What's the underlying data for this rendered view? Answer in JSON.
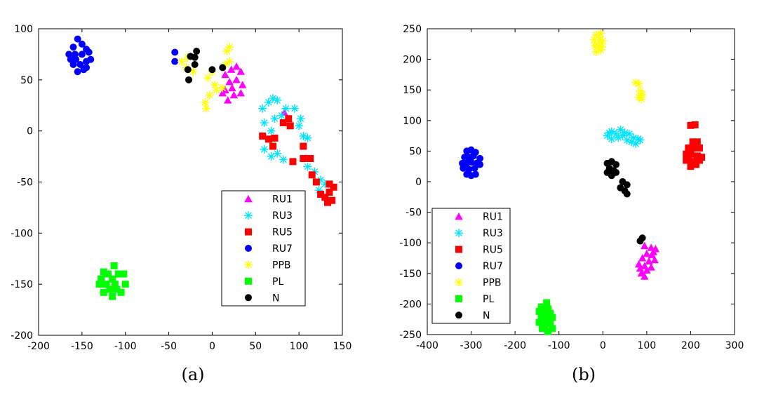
{
  "figure": {
    "caption_a": "(a)",
    "caption_b": "(b)"
  },
  "chart_data": [
    {
      "type": "scatter",
      "title": "",
      "xlabel": "",
      "ylabel": "",
      "xlim": [
        -200,
        150
      ],
      "ylim": [
        -200,
        100
      ],
      "xticks": [
        -200,
        -150,
        -100,
        -50,
        0,
        50,
        100,
        150
      ],
      "yticks": [
        -200,
        -150,
        -100,
        -50,
        0,
        50,
        100
      ],
      "legend_position": "lower-right",
      "series": [
        {
          "name": "RU1",
          "marker": "triangle",
          "color": "#ff00ff",
          "points": [
            [
              15,
              55
            ],
            [
              22,
              60
            ],
            [
              28,
              63
            ],
            [
              33,
              58
            ],
            [
              20,
              48
            ],
            [
              28,
              50
            ],
            [
              35,
              45
            ],
            [
              15,
              40
            ],
            [
              23,
              42
            ],
            [
              12,
              37
            ],
            [
              18,
              30
            ],
            [
              33,
              37
            ],
            [
              25,
              35
            ],
            [
              83,
              18
            ]
          ]
        },
        {
          "name": "RU3",
          "marker": "asterisk",
          "color": "#00e5ff",
          "points": [
            [
              58,
              22
            ],
            [
              65,
              28
            ],
            [
              70,
              32
            ],
            [
              75,
              30
            ],
            [
              60,
              8
            ],
            [
              68,
              0
            ],
            [
              72,
              12
            ],
            [
              80,
              15
            ],
            [
              85,
              22
            ],
            [
              95,
              22
            ],
            [
              102,
              12
            ],
            [
              100,
              5
            ],
            [
              105,
              -5
            ],
            [
              110,
              -7
            ],
            [
              60,
              -18
            ],
            [
              68,
              -25
            ],
            [
              75,
              -22
            ],
            [
              82,
              -28
            ],
            [
              110,
              -35
            ],
            [
              118,
              -40
            ],
            [
              125,
              -48
            ],
            [
              130,
              -52
            ],
            [
              123,
              -58
            ]
          ]
        },
        {
          "name": "RU5",
          "marker": "square",
          "color": "#ff0000",
          "points": [
            [
              82,
              8
            ],
            [
              88,
              12
            ],
            [
              90,
              5
            ],
            [
              58,
              -5
            ],
            [
              65,
              -8
            ],
            [
              72,
              -7
            ],
            [
              70,
              -15
            ],
            [
              105,
              -15
            ],
            [
              105,
              -27
            ],
            [
              113,
              -27
            ],
            [
              93,
              -30
            ],
            [
              115,
              -43
            ],
            [
              120,
              -50
            ],
            [
              125,
              -62
            ],
            [
              130,
              -65
            ],
            [
              135,
              -60
            ],
            [
              140,
              -55
            ],
            [
              135,
              -52
            ],
            [
              133,
              -70
            ],
            [
              138,
              -68
            ]
          ]
        },
        {
          "name": "RU7",
          "marker": "circle",
          "color": "#0000ff",
          "points": [
            [
              -160,
              82
            ],
            [
              -150,
              85
            ],
            [
              -155,
              90
            ],
            [
              -145,
              80
            ],
            [
              -165,
              75
            ],
            [
              -158,
              75
            ],
            [
              -150,
              75
            ],
            [
              -142,
              77
            ],
            [
              -160,
              65
            ],
            [
              -152,
              65
            ],
            [
              -145,
              68
            ],
            [
              -155,
              58
            ],
            [
              -148,
              60
            ],
            [
              -163,
              70
            ],
            [
              -140,
              70
            ],
            [
              -145,
              62
            ],
            [
              -157,
              70
            ],
            [
              -43,
              77
            ],
            [
              -43,
              68
            ]
          ]
        },
        {
          "name": "PPB",
          "marker": "asterisk",
          "color": "#ffff00",
          "points": [
            [
              -35,
              68
            ],
            [
              -28,
              72
            ],
            [
              -22,
              58
            ],
            [
              -30,
              62
            ],
            [
              -5,
              52
            ],
            [
              0,
              58
            ],
            [
              3,
              45
            ],
            [
              -3,
              35
            ],
            [
              -8,
              28
            ],
            [
              -7,
              22
            ],
            [
              17,
              78
            ],
            [
              20,
              82
            ],
            [
              15,
              65
            ],
            [
              20,
              68
            ],
            [
              5,
              40
            ],
            [
              12,
              42
            ]
          ]
        },
        {
          "name": "PL",
          "marker": "square",
          "color": "#00ff00",
          "points": [
            [
              -113,
              -132
            ],
            [
              -125,
              -138
            ],
            [
              -120,
              -140
            ],
            [
              -108,
              -140
            ],
            [
              -115,
              -145
            ],
            [
              -128,
              -145
            ],
            [
              -122,
              -150
            ],
            [
              -112,
              -150
            ],
            [
              -102,
              -140
            ],
            [
              -100,
              -150
            ],
            [
              -110,
              -155
            ],
            [
              -118,
              -155
            ],
            [
              -125,
              -158
            ],
            [
              -115,
              -162
            ],
            [
              -105,
              -158
            ],
            [
              -130,
              -150
            ]
          ]
        },
        {
          "name": "N",
          "marker": "circle",
          "color": "#000000",
          "points": [
            [
              -25,
              73
            ],
            [
              -18,
              78
            ],
            [
              -20,
              72
            ],
            [
              -28,
              60
            ],
            [
              -20,
              65
            ],
            [
              -27,
              50
            ],
            [
              0,
              60
            ],
            [
              12,
              62
            ]
          ]
        }
      ]
    },
    {
      "type": "scatter",
      "title": "",
      "xlabel": "",
      "ylabel": "",
      "xlim": [
        -400,
        300
      ],
      "ylim": [
        -250,
        250
      ],
      "xticks": [
        -400,
        -300,
        -200,
        -100,
        0,
        100,
        200,
        300
      ],
      "yticks": [
        -250,
        -200,
        -150,
        -100,
        -50,
        0,
        50,
        100,
        150,
        200,
        250
      ],
      "legend_position": "lower-left",
      "series": [
        {
          "name": "RU1",
          "marker": "triangle",
          "color": "#ff00ff",
          "points": [
            [
              95,
              -105
            ],
            [
              110,
              -108
            ],
            [
              120,
              -110
            ],
            [
              100,
              -118
            ],
            [
              112,
              -120
            ],
            [
              90,
              -125
            ],
            [
              105,
              -130
            ],
            [
              118,
              -128
            ],
            [
              95,
              -138
            ],
            [
              110,
              -140
            ],
            [
              85,
              -142
            ],
            [
              100,
              -145
            ],
            [
              88,
              -150
            ],
            [
              95,
              -155
            ],
            [
              115,
              -115
            ],
            [
              82,
              -135
            ]
          ]
        },
        {
          "name": "RU3",
          "marker": "asterisk",
          "color": "#00e5ff",
          "points": [
            [
              10,
              75
            ],
            [
              20,
              82
            ],
            [
              30,
              78
            ],
            [
              40,
              85
            ],
            [
              50,
              80
            ],
            [
              60,
              78
            ],
            [
              70,
              72
            ],
            [
              80,
              70
            ],
            [
              20,
              70
            ],
            [
              35,
              72
            ],
            [
              45,
              75
            ],
            [
              55,
              68
            ],
            [
              65,
              65
            ],
            [
              75,
              62
            ],
            [
              85,
              68
            ],
            [
              15,
              80
            ]
          ]
        },
        {
          "name": "RU5",
          "marker": "square",
          "color": "#ff0000",
          "points": [
            [
              200,
              92
            ],
            [
              210,
              93
            ],
            [
              205,
              65
            ],
            [
              215,
              65
            ],
            [
              195,
              55
            ],
            [
              210,
              55
            ],
            [
              220,
              55
            ],
            [
              190,
              45
            ],
            [
              200,
              45
            ],
            [
              215,
              42
            ],
            [
              225,
              40
            ],
            [
              195,
              35
            ],
            [
              208,
              33
            ],
            [
              220,
              35
            ],
            [
              200,
              25
            ],
            [
              212,
              28
            ],
            [
              190,
              35
            ]
          ]
        },
        {
          "name": "RU7",
          "marker": "circle",
          "color": "#0000ff",
          "points": [
            [
              -310,
              50
            ],
            [
              -300,
              52
            ],
            [
              -290,
              48
            ],
            [
              -315,
              40
            ],
            [
              -305,
              40
            ],
            [
              -295,
              42
            ],
            [
              -280,
              38
            ],
            [
              -320,
              30
            ],
            [
              -310,
              30
            ],
            [
              -300,
              32
            ],
            [
              -288,
              30
            ],
            [
              -318,
              22
            ],
            [
              -305,
              20
            ],
            [
              -292,
              22
            ],
            [
              -300,
              10
            ],
            [
              -310,
              12
            ],
            [
              -290,
              12
            ],
            [
              -280,
              28
            ]
          ]
        },
        {
          "name": "PPB",
          "marker": "asterisk",
          "color": "#ffff00",
          "points": [
            [
              -15,
              240
            ],
            [
              -5,
              242
            ],
            [
              -20,
              232
            ],
            [
              -8,
              232
            ],
            [
              0,
              230
            ],
            [
              -18,
              222
            ],
            [
              -10,
              222
            ],
            [
              -2,
              220
            ],
            [
              -15,
              212
            ],
            [
              -5,
              215
            ],
            [
              75,
              162
            ],
            [
              82,
              160
            ],
            [
              85,
              148
            ],
            [
              90,
              143
            ],
            [
              82,
              138
            ],
            [
              88,
              135
            ]
          ]
        },
        {
          "name": "PL",
          "marker": "square",
          "color": "#00ff00",
          "points": [
            [
              -128,
              -198
            ],
            [
              -140,
              -205
            ],
            [
              -125,
              -208
            ],
            [
              -133,
              -215
            ],
            [
              -145,
              -212
            ],
            [
              -120,
              -215
            ],
            [
              -140,
              -222
            ],
            [
              -128,
              -225
            ],
            [
              -115,
              -222
            ],
            [
              -145,
              -230
            ],
            [
              -132,
              -235
            ],
            [
              -120,
              -232
            ],
            [
              -138,
              -240
            ],
            [
              -125,
              -245
            ],
            [
              -115,
              -240
            ],
            [
              -132,
              -205
            ]
          ]
        },
        {
          "name": "N",
          "marker": "circle",
          "color": "#000000",
          "points": [
            [
              10,
              30
            ],
            [
              20,
              33
            ],
            [
              30,
              28
            ],
            [
              15,
              22
            ],
            [
              25,
              18
            ],
            [
              10,
              15
            ],
            [
              20,
              10
            ],
            [
              30,
              15
            ],
            [
              45,
              0
            ],
            [
              55,
              -5
            ],
            [
              40,
              -10
            ],
            [
              50,
              -15
            ],
            [
              55,
              -20
            ],
            [
              90,
              -92
            ],
            [
              85,
              -97
            ]
          ]
        }
      ]
    }
  ]
}
